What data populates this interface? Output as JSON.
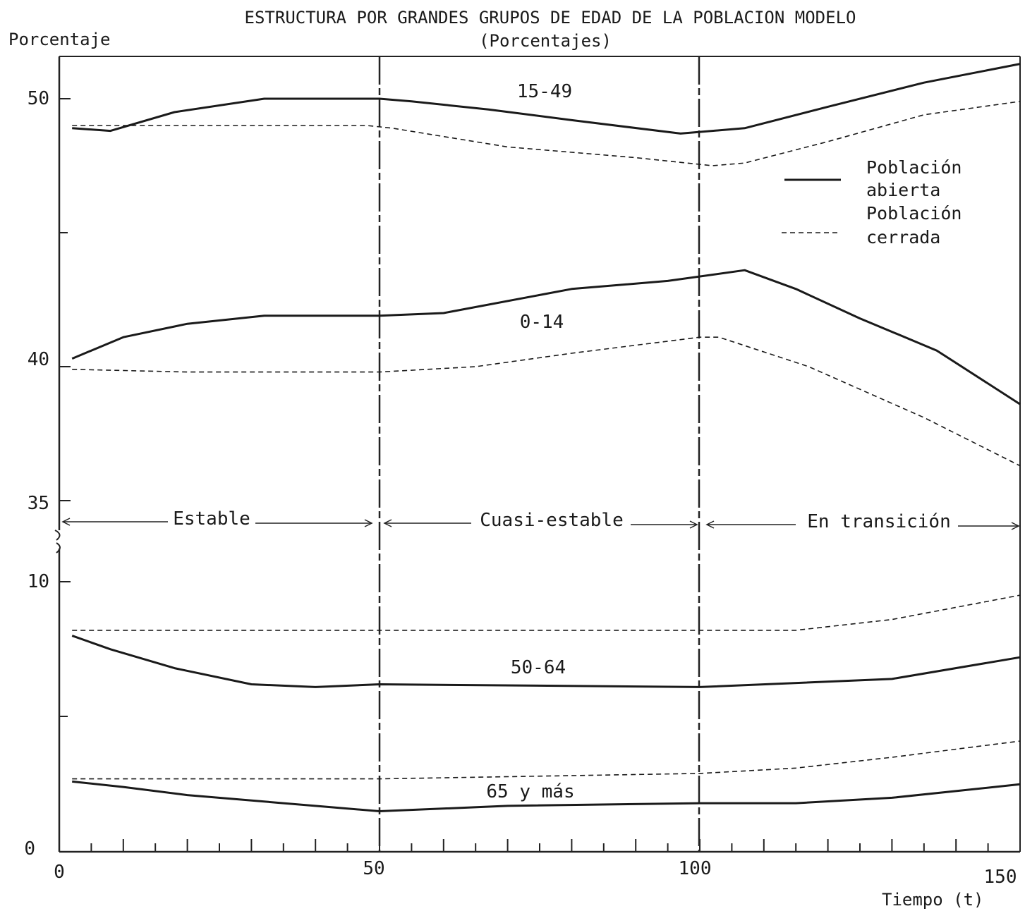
{
  "chart_data": {
    "type": "line",
    "title": "ESTRUCTURA POR GRANDES GRUPOS DE EDAD DE LA POBLACION MODELO",
    "subtitle": "(Porcentajes)",
    "ylabel": "Porcentaje",
    "xlabel": "Tiempo (t)",
    "xlim": [
      0,
      150
    ],
    "x_ticks": [
      "0",
      "50",
      "100",
      "150"
    ],
    "y_ticks_upper": [
      "35",
      "40",
      "50"
    ],
    "y_ticks_lower": [
      "0",
      "10"
    ],
    "ylim_upper": [
      35,
      52.5
    ],
    "ylim_lower": [
      0,
      10
    ],
    "axis_break": true,
    "period_boundaries": [
      50,
      100
    ],
    "periods": [
      "Estable",
      "Cuasi-estable",
      "En transición"
    ],
    "legend": {
      "placement": "right",
      "open_line1": "Población",
      "open_line2": "abierta",
      "closed_line1": "Población",
      "closed_line2": "cerrada"
    },
    "group_labels": [
      "15-49",
      "0-14",
      "50-64",
      "65 y más"
    ],
    "series": [
      {
        "group": "15-49",
        "type": "abierta",
        "panel": "upper",
        "x": [
          2,
          8,
          18,
          32,
          50,
          55,
          67,
          80,
          97,
          107,
          120,
          135,
          150
        ],
        "y": [
          48.9,
          48.8,
          49.5,
          50.0,
          50.0,
          49.9,
          49.6,
          49.2,
          48.7,
          48.9,
          49.7,
          50.6,
          51.3
        ]
      },
      {
        "group": "15-49",
        "type": "cerrada",
        "panel": "upper",
        "x": [
          2,
          20,
          40,
          48,
          52,
          70,
          90,
          102,
          107,
          120,
          135,
          150
        ],
        "y": [
          49.0,
          49.0,
          49.0,
          49.0,
          48.9,
          48.2,
          47.8,
          47.5,
          47.6,
          48.4,
          49.4,
          49.9
        ]
      },
      {
        "group": "0-14",
        "type": "abierta",
        "panel": "upper",
        "x": [
          2,
          10,
          20,
          32,
          50,
          60,
          80,
          95,
          107,
          115,
          125,
          137,
          150
        ],
        "y": [
          40.3,
          41.1,
          41.6,
          41.9,
          41.9,
          42.0,
          42.9,
          43.2,
          43.6,
          42.9,
          41.8,
          40.6,
          38.6
        ]
      },
      {
        "group": "0-14",
        "type": "cerrada",
        "panel": "upper",
        "x": [
          2,
          20,
          50,
          65,
          80,
          100,
          103,
          117,
          135,
          150
        ],
        "y": [
          39.9,
          39.8,
          39.8,
          40.0,
          40.5,
          41.1,
          41.1,
          40.0,
          38.1,
          36.3
        ]
      },
      {
        "group": "50-64",
        "type": "abierta",
        "panel": "lower",
        "x": [
          2,
          8,
          18,
          30,
          40,
          50,
          100,
          130,
          150
        ],
        "y": [
          8.0,
          7.5,
          6.8,
          6.2,
          6.1,
          6.2,
          6.1,
          6.4,
          7.2
        ]
      },
      {
        "group": "50-64",
        "type": "cerrada",
        "panel": "lower",
        "x": [
          2,
          50,
          100,
          115,
          130,
          150
        ],
        "y": [
          8.2,
          8.2,
          8.2,
          8.2,
          8.6,
          9.5
        ]
      },
      {
        "group": "65 y más",
        "type": "abierta",
        "panel": "lower",
        "x": [
          2,
          10,
          20,
          35,
          50,
          70,
          100,
          115,
          130,
          150
        ],
        "y": [
          2.6,
          2.4,
          2.1,
          1.8,
          1.5,
          1.7,
          1.8,
          1.8,
          2.0,
          2.5
        ]
      },
      {
        "group": "65 y más",
        "type": "cerrada",
        "panel": "lower",
        "x": [
          2,
          50,
          100,
          115,
          130,
          150
        ],
        "y": [
          2.7,
          2.7,
          2.9,
          3.1,
          3.5,
          4.1
        ]
      }
    ]
  }
}
